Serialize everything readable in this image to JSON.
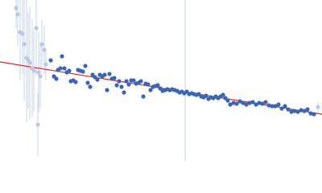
{
  "chart_data": {
    "type": "scatter",
    "xlim": [
      0,
      100
    ],
    "ylim": [
      0,
      100
    ],
    "series": [
      {
        "color": "#b9c9e3",
        "error_color": "#c9d5ea",
        "x": [
          5,
          5.5,
          6.25,
          7,
          7.5,
          8.25,
          8.75,
          9.25,
          10,
          10.5,
          11.25,
          11.75,
          12,
          12.5,
          13,
          13.75,
          14.25,
          98.75
        ],
        "values": [
          95,
          91,
          80,
          79,
          72.5,
          64,
          62.5,
          61,
          57.5,
          56,
          82.5,
          22.5,
          55,
          52.5,
          72.5,
          69,
          60,
          33.5
        ],
        "errors": [
          12.5,
          20,
          30,
          25,
          35,
          40,
          30,
          35,
          30,
          25,
          30,
          20,
          25,
          20,
          15,
          15,
          10,
          3
        ]
      },
      {
        "color": "#3b66b1",
        "x": [
          15.75,
          16.75,
          17.5,
          18,
          18.75,
          19.25,
          20,
          20.75,
          21.5,
          22,
          22.75,
          23.5,
          24.25,
          25,
          25.75,
          26.5,
          27.25,
          28,
          28.75,
          29.5,
          30.25,
          31,
          31.75,
          32.5,
          33.25,
          34,
          34.75,
          35.5,
          36.25,
          37,
          37.75,
          38.5,
          39.25,
          40,
          40.75,
          41.5,
          42.25,
          43,
          43.75,
          44.5,
          45.25,
          46,
          46.75,
          47.5,
          48.25,
          49,
          49.75,
          50.5,
          51.25,
          52,
          52.75,
          53.5,
          54.25,
          55,
          55.75,
          56.5,
          57.25,
          58,
          58.75,
          59.5,
          60.25,
          61,
          61.75,
          62.5,
          63.25,
          64,
          64.75,
          65.5,
          66.25,
          67,
          67.75,
          68.5,
          69.25,
          70,
          70.75,
          71.5,
          72.5,
          73.5,
          74.5,
          75.5,
          76.5,
          77.5,
          78.5,
          79.5,
          80.5,
          81.5,
          82.5,
          83.5,
          84.5,
          85.5,
          86.5,
          87.5,
          88.5,
          89.5,
          90.5,
          91.5,
          92.5,
          93.5,
          94.5,
          95.5,
          96.5,
          97.5
        ],
        "values": [
          62.5,
          52.5,
          51,
          56.5,
          57.5,
          65,
          57.5,
          55,
          56,
          49.5,
          50,
          49,
          56.5,
          56,
          55.5,
          59,
          48.5,
          46,
          53.5,
          52,
          50.5,
          53.5,
          52.5,
          53.5,
          44,
          54,
          51,
          51.5,
          47,
          49.5,
          46,
          42.5,
          49.5,
          47.5,
          50,
          50,
          48,
          48.5,
          49.5,
          40,
          48,
          47.5,
          44,
          46,
          46.5,
          47,
          45,
          43.5,
          44,
          44.5,
          44,
          44.5,
          44,
          43.5,
          42.5,
          43,
          42,
          43,
          41.5,
          42,
          41.5,
          41,
          41.5,
          40,
          39.5,
          40.5,
          38.5,
          39.5,
          39,
          40,
          39,
          40,
          41,
          39,
          37.5,
          35,
          36,
          35.5,
          37,
          36,
          35,
          36,
          36.5,
          35,
          36,
          35.5,
          36.5,
          34.5,
          34,
          34,
          35,
          32.5,
          34,
          32,
          30.5,
          31,
          30.5,
          31.5,
          31,
          32,
          29.5,
          29
        ]
      }
    ],
    "fit": {
      "color": "#e02525",
      "x": [
        0,
        100
      ],
      "y": [
        61.5,
        29
      ]
    },
    "vline": {
      "color": "#c9d5ea",
      "x": 57.5
    }
  }
}
